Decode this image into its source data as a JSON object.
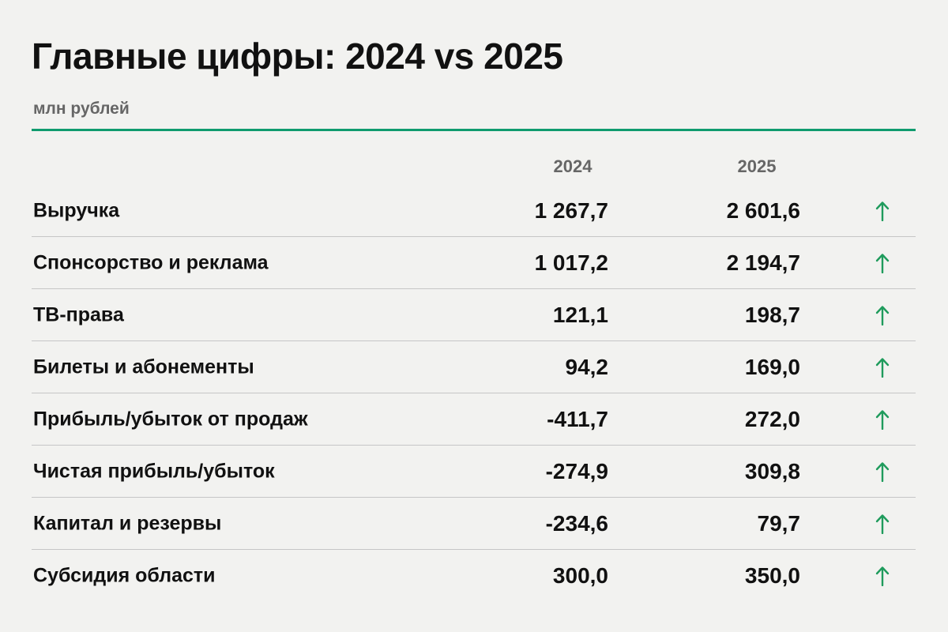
{
  "header": {
    "title": "Главные цифры: 2024 vs 2025",
    "subtitle": "млн рублей"
  },
  "colors": {
    "accent": "#0f9b6e",
    "arrow": "#1f9b5c",
    "divider": "#c6c6c6"
  },
  "icons": {
    "trend": "arrow-up-icon"
  },
  "chart_data": {
    "type": "table",
    "title": "Главные цифры: 2024 vs 2025",
    "subtitle": "млн рублей",
    "columns": [
      "2024",
      "2025"
    ],
    "rows": [
      {
        "label": "Выручка",
        "v2024": "1 267,7",
        "v2025": "2 601,6",
        "trend": "up"
      },
      {
        "label": "Спонсорство и реклама",
        "v2024": "1 017,2",
        "v2025": "2 194,7",
        "trend": "up"
      },
      {
        "label": "ТВ-права",
        "v2024": "121,1",
        "v2025": "198,7",
        "trend": "up"
      },
      {
        "label": "Билеты и абонементы",
        "v2024": "94,2",
        "v2025": "169,0",
        "trend": "up"
      },
      {
        "label": "Прибыль/убыток от продаж",
        "v2024": "-411,7",
        "v2025": "272,0",
        "trend": "up"
      },
      {
        "label": "Чистая прибыль/убыток",
        "v2024": "-274,9",
        "v2025": "309,8",
        "trend": "up"
      },
      {
        "label": "Капитал и резервы",
        "v2024": "-234,6",
        "v2025": "79,7",
        "trend": "up"
      },
      {
        "label": "Субсидия области",
        "v2024": "300,0",
        "v2025": "350,0",
        "trend": "up"
      }
    ]
  }
}
